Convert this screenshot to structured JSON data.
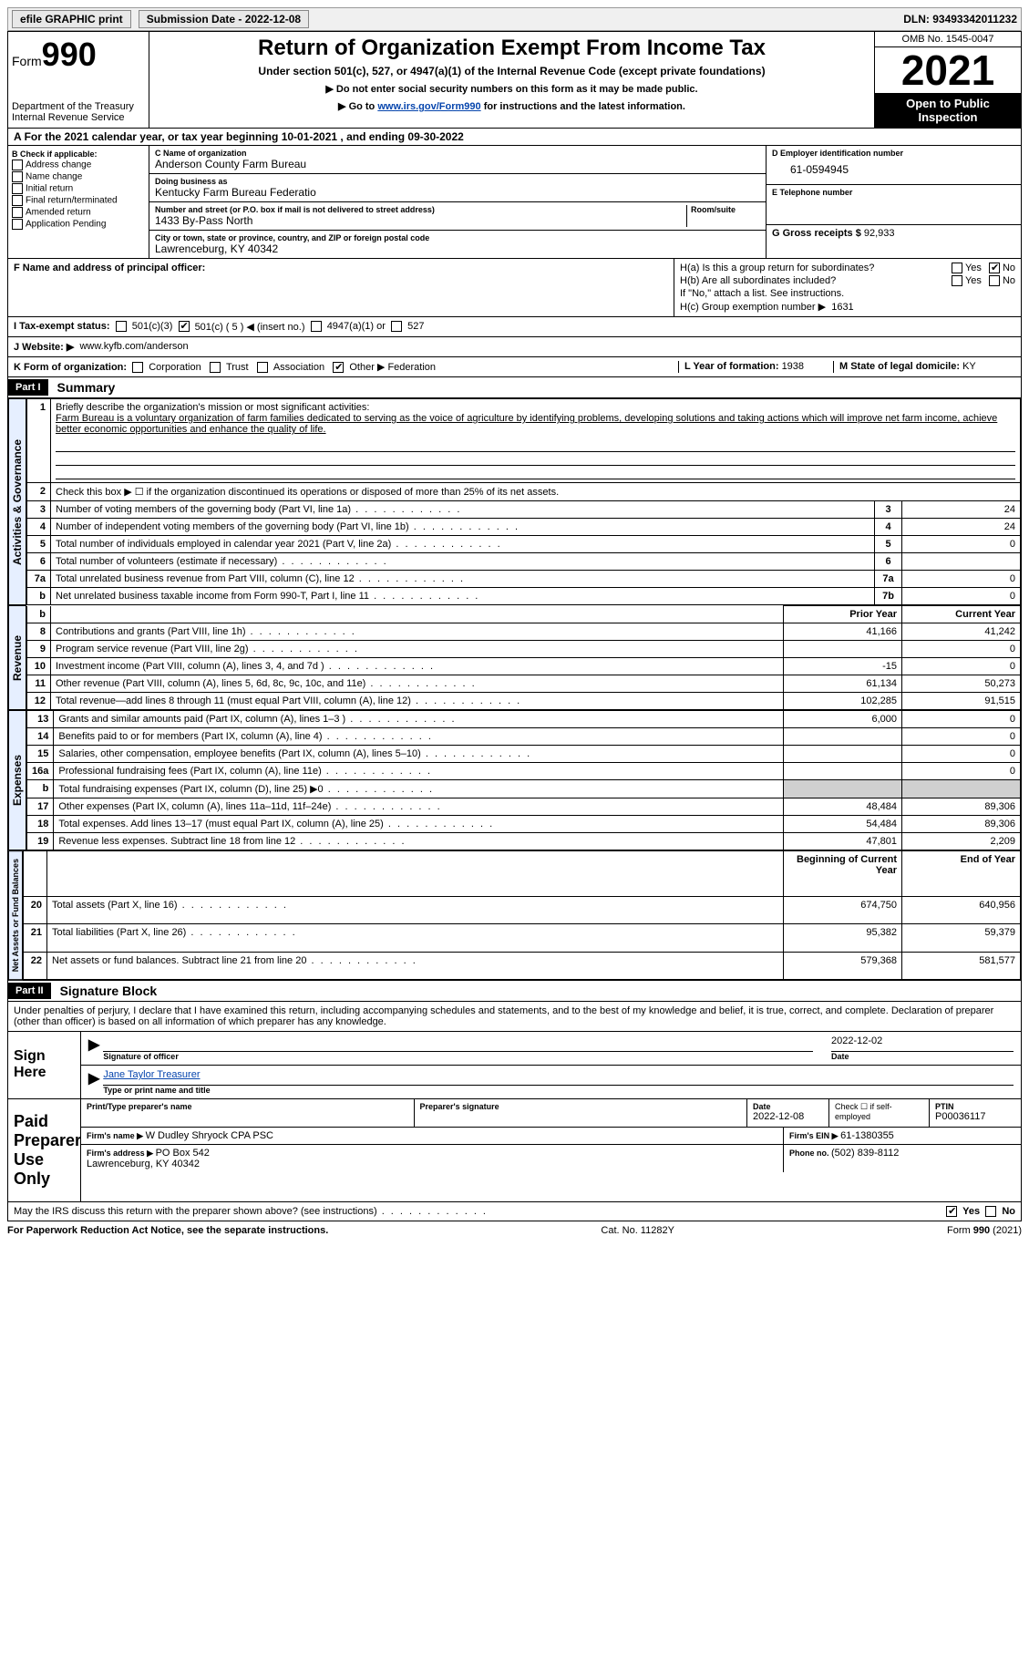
{
  "topbar": {
    "efile": "efile GRAPHIC print",
    "sub_label": "Submission Date - ",
    "sub_date": "2022-12-08",
    "dln_label": "DLN: ",
    "dln": "93493342011232"
  },
  "header": {
    "form_word": "Form",
    "form_num": "990",
    "dept": "Department of the Treasury\nInternal Revenue Service",
    "title": "Return of Organization Exempt From Income Tax",
    "subtitle": "Under section 501(c), 527, or 4947(a)(1) of the Internal Revenue Code (except private foundations)",
    "instr1": "▶ Do not enter social security numbers on this form as it may be made public.",
    "instr2_pre": "▶ Go to ",
    "instr2_link": "www.irs.gov/Form990",
    "instr2_post": " for instructions and the latest information.",
    "omb": "OMB No. 1545-0047",
    "year": "2021",
    "open": "Open to Public Inspection"
  },
  "lineA": {
    "text_pre": "For the 2021 calendar year, or tax year beginning ",
    "begin": "10-01-2021",
    "mid": " , and ending ",
    "end": "09-30-2022"
  },
  "colB": {
    "hdr": "B Check if applicable:",
    "items": [
      "Address change",
      "Name change",
      "Initial return",
      "Final return/terminated",
      "Amended return",
      "Application Pending"
    ]
  },
  "colC": {
    "name_lbl": "C Name of organization",
    "name": "Anderson County Farm Bureau",
    "dba_lbl": "Doing business as",
    "dba": "Kentucky Farm Bureau Federatio",
    "street_lbl": "Number and street (or P.O. box if mail is not delivered to street address)",
    "room_lbl": "Room/suite",
    "street": "1433 By-Pass North",
    "city_lbl": "City or town, state or province, country, and ZIP or foreign postal code",
    "city": "Lawrenceburg, KY  40342"
  },
  "colD": {
    "ein_lbl": "D Employer identification number",
    "ein": "61-0594945",
    "tel_lbl": "E Telephone number",
    "tel": "",
    "gross_lbl": "G Gross receipts $ ",
    "gross": "92,933"
  },
  "rowF": {
    "f_lbl": "F  Name and address of principal officer:",
    "f_val": "",
    "ha_lbl": "H(a)  Is this a group return for subordinates?",
    "ha_yes": "Yes",
    "ha_no": "No",
    "hb_lbl": "H(b)  Are all subordinates included?",
    "hb_yes": "Yes",
    "hb_no": "No",
    "hb_note": "If \"No,\" attach a list. See instructions.",
    "hc_lbl": "H(c)  Group exemption number ▶",
    "hc_val": "1631"
  },
  "rowI": {
    "lbl": "I  Tax-exempt status:",
    "o1": "501(c)(3)",
    "o2": "501(c) ( 5 ) ◀ (insert no.)",
    "o3": "4947(a)(1) or",
    "o4": "527"
  },
  "rowJ": {
    "lbl": "J  Website: ▶",
    "val": "www.kyfb.com/anderson"
  },
  "rowK": {
    "lbl": "K Form of organization:",
    "opts": [
      "Corporation",
      "Trust",
      "Association",
      "Other ▶"
    ],
    "other_val": "Federation",
    "l_lbl": "L Year of formation: ",
    "l_val": "1938",
    "m_lbl": "M State of legal domicile: ",
    "m_val": "KY"
  },
  "part1": {
    "tag": "Part I",
    "title": "Summary"
  },
  "summary": {
    "q1_lbl": "Briefly describe the organization's mission or most significant activities:",
    "q1_text": "Farm Bureau is a voluntary organization of farm families dedicated to serving as the voice of agriculture by identifying problems, developing solutions and taking actions which will improve net farm income, achieve better economic opportunities and enhance the quality of life.",
    "q2": "Check this box ▶ ☐  if the organization discontinued its operations or disposed of more than 25% of its net assets.",
    "rows_a": [
      {
        "n": "3",
        "t": "Number of voting members of the governing body (Part VI, line 1a)",
        "box": "3",
        "v": "24"
      },
      {
        "n": "4",
        "t": "Number of independent voting members of the governing body (Part VI, line 1b)",
        "box": "4",
        "v": "24"
      },
      {
        "n": "5",
        "t": "Total number of individuals employed in calendar year 2021 (Part V, line 2a)",
        "box": "5",
        "v": "0"
      },
      {
        "n": "6",
        "t": "Total number of volunteers (estimate if necessary)",
        "box": "6",
        "v": ""
      },
      {
        "n": "7a",
        "t": "Total unrelated business revenue from Part VIII, column (C), line 12",
        "box": "7a",
        "v": "0"
      },
      {
        "n": "b",
        "t": "Net unrelated business taxable income from Form 990-T, Part I, line 11",
        "box": "7b",
        "v": "0"
      }
    ],
    "col_prior": "Prior Year",
    "col_curr": "Current Year",
    "rows_rev": [
      {
        "n": "8",
        "t": "Contributions and grants (Part VIII, line 1h)",
        "p": "41,166",
        "c": "41,242"
      },
      {
        "n": "9",
        "t": "Program service revenue (Part VIII, line 2g)",
        "p": "",
        "c": "0"
      },
      {
        "n": "10",
        "t": "Investment income (Part VIII, column (A), lines 3, 4, and 7d )",
        "p": "-15",
        "c": "0"
      },
      {
        "n": "11",
        "t": "Other revenue (Part VIII, column (A), lines 5, 6d, 8c, 9c, 10c, and 11e)",
        "p": "61,134",
        "c": "50,273"
      },
      {
        "n": "12",
        "t": "Total revenue—add lines 8 through 11 (must equal Part VIII, column (A), line 12)",
        "p": "102,285",
        "c": "91,515"
      }
    ],
    "rows_exp": [
      {
        "n": "13",
        "t": "Grants and similar amounts paid (Part IX, column (A), lines 1–3 )",
        "p": "6,000",
        "c": "0"
      },
      {
        "n": "14",
        "t": "Benefits paid to or for members (Part IX, column (A), line 4)",
        "p": "",
        "c": "0"
      },
      {
        "n": "15",
        "t": "Salaries, other compensation, employee benefits (Part IX, column (A), lines 5–10)",
        "p": "",
        "c": "0"
      },
      {
        "n": "16a",
        "t": "Professional fundraising fees (Part IX, column (A), line 11e)",
        "p": "",
        "c": "0"
      },
      {
        "n": "b",
        "t": "Total fundraising expenses (Part IX, column (D), line 25) ▶0",
        "p": "shade",
        "c": "shade"
      },
      {
        "n": "17",
        "t": "Other expenses (Part IX, column (A), lines 11a–11d, 11f–24e)",
        "p": "48,484",
        "c": "89,306"
      },
      {
        "n": "18",
        "t": "Total expenses. Add lines 13–17 (must equal Part IX, column (A), line 25)",
        "p": "54,484",
        "c": "89,306"
      },
      {
        "n": "19",
        "t": "Revenue less expenses. Subtract line 18 from line 12",
        "p": "47,801",
        "c": "2,209"
      }
    ],
    "col_begin": "Beginning of Current Year",
    "col_end": "End of Year",
    "rows_net": [
      {
        "n": "20",
        "t": "Total assets (Part X, line 16)",
        "p": "674,750",
        "c": "640,956"
      },
      {
        "n": "21",
        "t": "Total liabilities (Part X, line 26)",
        "p": "95,382",
        "c": "59,379"
      },
      {
        "n": "22",
        "t": "Net assets or fund balances. Subtract line 21 from line 20",
        "p": "579,368",
        "c": "581,577"
      }
    ]
  },
  "vtabs": {
    "act": "Activities & Governance",
    "rev": "Revenue",
    "exp": "Expenses",
    "net": "Net Assets or Fund Balances"
  },
  "part2": {
    "tag": "Part II",
    "title": "Signature Block"
  },
  "sig": {
    "perjury": "Under penalties of perjury, I declare that I have examined this return, including accompanying schedules and statements, and to the best of my knowledge and belief, it is true, correct, and complete. Declaration of preparer (other than officer) is based on all information of which preparer has any knowledge.",
    "sign_here": "Sign Here",
    "sig_officer": "Signature of officer",
    "sig_date": "2022-12-02",
    "date_lbl": "Date",
    "name_title": "Jane Taylor Treasurer",
    "name_lbl": "Type or print name and title",
    "paid": "Paid Preparer Use Only",
    "prep_name_lbl": "Print/Type preparer's name",
    "prep_sig_lbl": "Preparer's signature",
    "prep_date_lbl": "Date",
    "prep_date": "2022-12-08",
    "self_lbl": "Check ☐ if self-employed",
    "ptin_lbl": "PTIN",
    "ptin": "P00036117",
    "firm_name_lbl": "Firm's name   ▶ ",
    "firm_name": "W Dudley Shryock CPA PSC",
    "firm_ein_lbl": "Firm's EIN ▶ ",
    "firm_ein": "61-1380355",
    "firm_addr_lbl": "Firm's address ▶ ",
    "firm_addr": "PO Box 542\nLawrenceburg, KY  40342",
    "phone_lbl": "Phone no. ",
    "phone": "(502) 839-8112",
    "may_irs": "May the IRS discuss this return with the preparer shown above? (see instructions)",
    "yes": "Yes",
    "no": "No"
  },
  "footer": {
    "pra": "For Paperwork Reduction Act Notice, see the separate instructions.",
    "cat": "Cat. No. 11282Y",
    "form": "Form 990 (2021)"
  },
  "colors": {
    "link": "#0645ad",
    "vtab_bg": "#e6efff",
    "shade": "#d0d0d0"
  }
}
